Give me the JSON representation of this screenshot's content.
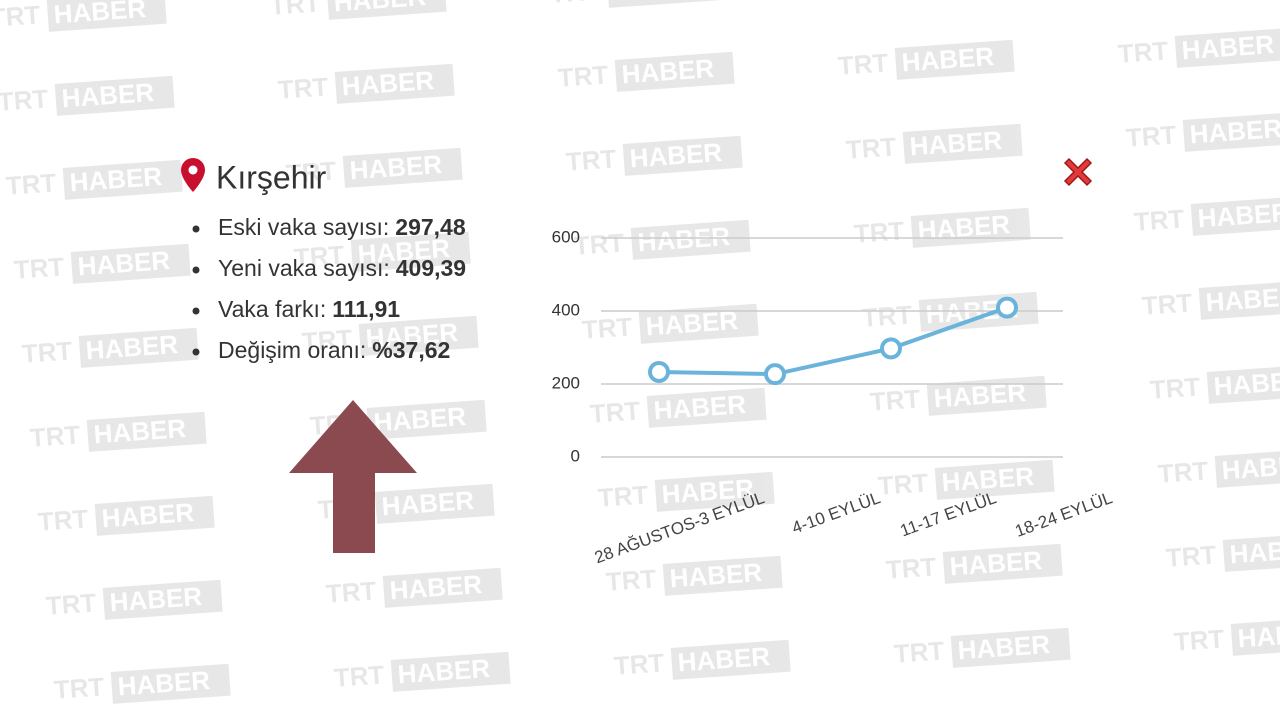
{
  "watermark": {
    "left": "TRT",
    "right": "HABER"
  },
  "header": {
    "title": "Kırşehir"
  },
  "stats": [
    {
      "label": "Eski vaka sayısı:",
      "value": "297,48"
    },
    {
      "label": "Yeni vaka sayısı:",
      "value": "409,39"
    },
    {
      "label": "Vaka farkı:",
      "value": "111,91"
    },
    {
      "label": "Değişim oranı:",
      "value": "%37,62"
    }
  ],
  "chart_data": {
    "type": "line",
    "categories": [
      "28 AĞUSTOS-3 EYLÜL",
      "4-10 EYLÜL",
      "11-17 EYLÜL",
      "18-24 EYLÜL"
    ],
    "series": [
      {
        "color": "#6ab4dc",
        "values": [
          233,
          227,
          297.48,
          409.39
        ]
      }
    ],
    "ylim": [
      0,
      600
    ],
    "yticks": [
      0,
      200,
      400,
      600
    ],
    "grid": true
  }
}
